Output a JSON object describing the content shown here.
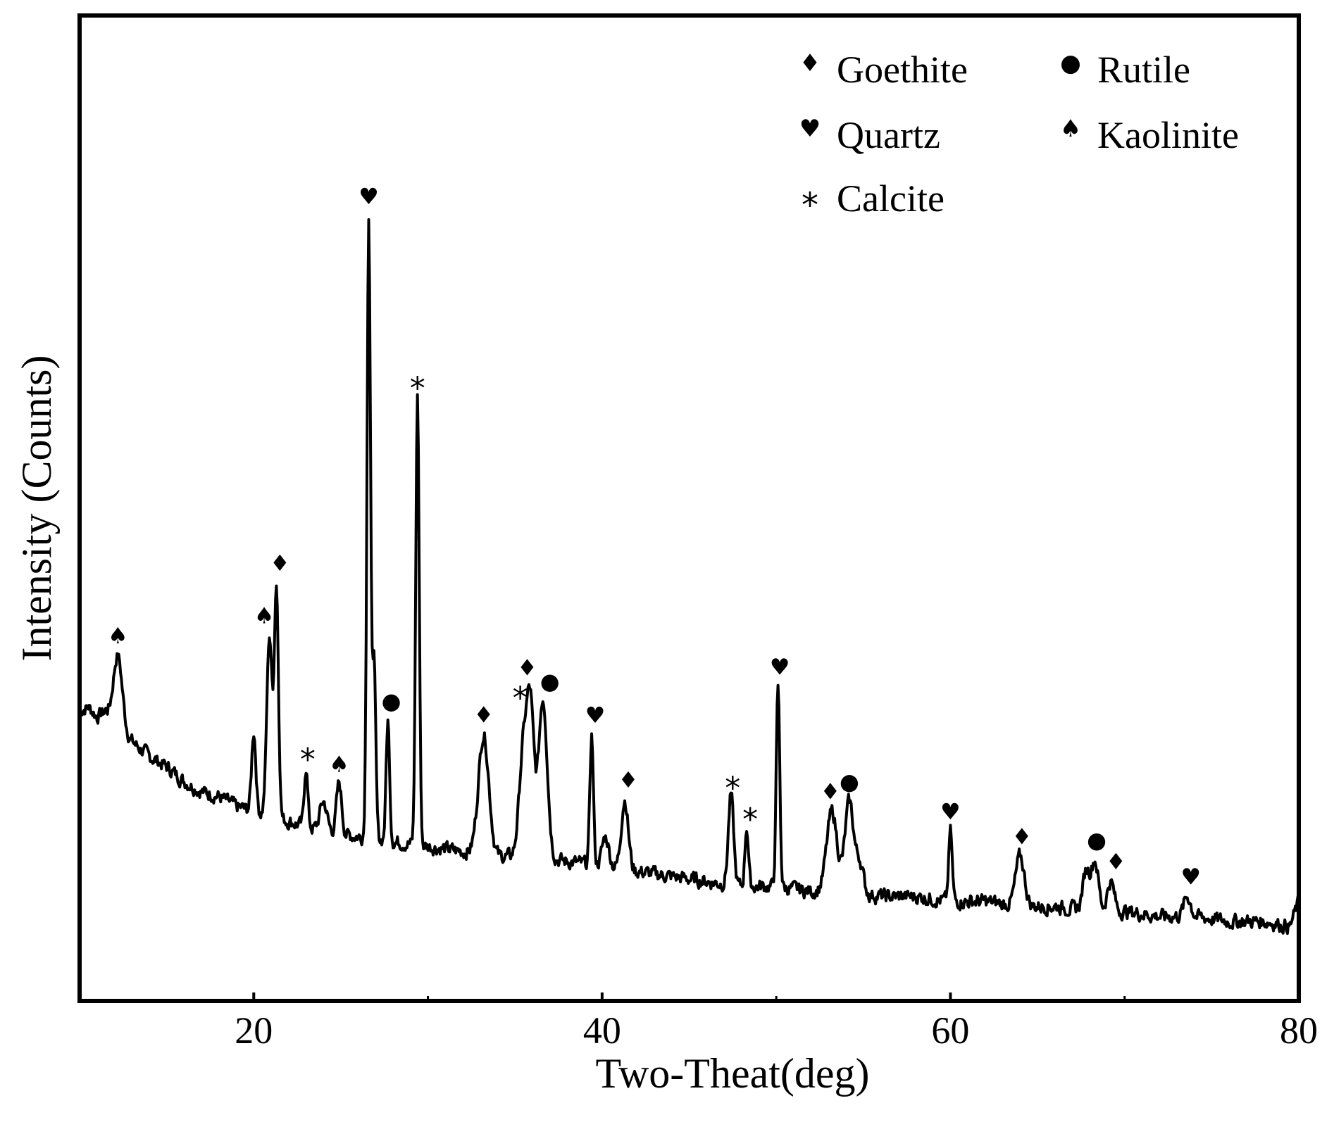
{
  "chart_data": {
    "type": "line",
    "title": "",
    "xlabel": "Two-Theat(deg)",
    "ylabel": "Intensity  (Counts)",
    "xlim": [
      10,
      80
    ],
    "ylim": [
      0,
      100
    ],
    "x_ticks": [
      {
        "value": 20,
        "label": "20"
      },
      {
        "value": 40,
        "label": "40"
      },
      {
        "value": 60,
        "label": "60"
      },
      {
        "value": 80,
        "label": "80"
      }
    ],
    "y_ticks_shown": false,
    "grid": false,
    "legend_position": "top-right",
    "legend": [
      {
        "phase": "goethite",
        "symbol": "♦",
        "label": "Goethite"
      },
      {
        "phase": "rutile",
        "symbol": "●",
        "label": "Rutile"
      },
      {
        "phase": "quartz",
        "symbol": "♥",
        "label": "Quartz"
      },
      {
        "phase": "kaolinite",
        "symbol": "♠",
        "label": "Kaolinite"
      },
      {
        "phase": "calcite",
        "symbol": "*",
        "label": "Calcite"
      }
    ],
    "series": [
      {
        "color": "#000000",
        "baseline": [
          [
            10,
            26
          ],
          [
            10.5,
            26.5
          ],
          [
            11,
            25.5
          ],
          [
            11.5,
            26
          ],
          [
            12,
            25
          ],
          [
            12.5,
            24
          ],
          [
            13,
            23
          ],
          [
            14,
            21.5
          ],
          [
            15,
            20.5
          ],
          [
            16,
            19
          ],
          [
            17,
            18
          ],
          [
            18,
            17.5
          ],
          [
            19,
            16.5
          ],
          [
            20,
            16
          ],
          [
            22,
            15
          ],
          [
            24,
            14
          ],
          [
            26,
            13.5
          ],
          [
            28,
            13
          ],
          [
            30,
            12.5
          ],
          [
            32,
            12
          ],
          [
            34,
            11.5
          ],
          [
            36,
            11.5
          ],
          [
            38,
            11
          ],
          [
            40,
            10.5
          ],
          [
            42,
            10
          ],
          [
            44,
            9.5
          ],
          [
            46,
            9
          ],
          [
            48,
            8.5
          ],
          [
            50,
            8.5
          ],
          [
            52,
            8
          ],
          [
            54,
            8
          ],
          [
            56,
            7.5
          ],
          [
            58,
            7.5
          ],
          [
            60,
            7
          ],
          [
            62,
            7
          ],
          [
            64,
            6.5
          ],
          [
            66,
            6.5
          ],
          [
            68,
            6
          ],
          [
            70,
            6
          ],
          [
            72,
            5.5
          ],
          [
            74,
            5.5
          ],
          [
            76,
            5
          ],
          [
            78,
            5
          ],
          [
            79.5,
            4.5
          ],
          [
            80,
            7
          ]
        ],
        "peaks": [
          {
            "x": 12.2,
            "height": 7,
            "width": 0.25
          },
          {
            "x": 20.0,
            "height": 8,
            "width": 0.12
          },
          {
            "x": 20.9,
            "height": 18,
            "width": 0.15
          },
          {
            "x": 21.3,
            "height": 23,
            "width": 0.12
          },
          {
            "x": 23.0,
            "height": 6,
            "width": 0.1
          },
          {
            "x": 24.0,
            "height": 3,
            "width": 0.2
          },
          {
            "x": 24.9,
            "height": 5,
            "width": 0.15
          },
          {
            "x": 26.6,
            "height": 62,
            "width": 0.1
          },
          {
            "x": 26.9,
            "height": 18,
            "width": 0.1
          },
          {
            "x": 27.7,
            "height": 12,
            "width": 0.1
          },
          {
            "x": 29.4,
            "height": 45,
            "width": 0.1
          },
          {
            "x": 33.2,
            "height": 12,
            "width": 0.3
          },
          {
            "x": 35.5,
            "height": 11,
            "width": 0.25
          },
          {
            "x": 35.9,
            "height": 13,
            "width": 0.2
          },
          {
            "x": 36.6,
            "height": 16,
            "width": 0.25
          },
          {
            "x": 39.4,
            "height": 13,
            "width": 0.1
          },
          {
            "x": 40.2,
            "height": 3,
            "width": 0.2
          },
          {
            "x": 41.3,
            "height": 7,
            "width": 0.2
          },
          {
            "x": 47.4,
            "height": 9,
            "width": 0.15
          },
          {
            "x": 48.3,
            "height": 6,
            "width": 0.1
          },
          {
            "x": 50.1,
            "height": 20,
            "width": 0.1
          },
          {
            "x": 53.2,
            "height": 8,
            "width": 0.3
          },
          {
            "x": 54.2,
            "height": 9,
            "width": 0.25
          },
          {
            "x": 54.8,
            "height": 3,
            "width": 0.2
          },
          {
            "x": 60.0,
            "height": 7,
            "width": 0.1
          },
          {
            "x": 64.0,
            "height": 5,
            "width": 0.25
          },
          {
            "x": 67.8,
            "height": 4,
            "width": 0.2
          },
          {
            "x": 68.3,
            "height": 5,
            "width": 0.2
          },
          {
            "x": 69.2,
            "height": 3,
            "width": 0.2
          },
          {
            "x": 73.6,
            "height": 2,
            "width": 0.2
          }
        ]
      }
    ],
    "annotations": [
      {
        "x": 12.2,
        "phase": "kaolinite",
        "symbol": "♠"
      },
      {
        "x": 20.6,
        "phase": "kaolinite",
        "symbol": "♠"
      },
      {
        "x": 21.5,
        "phase": "goethite",
        "symbol": "♦"
      },
      {
        "x": 23.1,
        "phase": "calcite",
        "symbol": "*"
      },
      {
        "x": 24.9,
        "phase": "kaolinite",
        "symbol": "♠"
      },
      {
        "x": 26.6,
        "phase": "quartz",
        "symbol": "♥"
      },
      {
        "x": 27.9,
        "phase": "rutile",
        "symbol": "●"
      },
      {
        "x": 29.4,
        "phase": "calcite",
        "symbol": "*"
      },
      {
        "x": 33.2,
        "phase": "goethite",
        "symbol": "♦"
      },
      {
        "x": 35.3,
        "phase": "calcite",
        "symbol": "*"
      },
      {
        "x": 35.7,
        "phase": "goethite",
        "symbol": "♦"
      },
      {
        "x": 37.0,
        "phase": "rutile",
        "symbol": "●"
      },
      {
        "x": 39.6,
        "phase": "quartz",
        "symbol": "♥"
      },
      {
        "x": 41.5,
        "phase": "goethite",
        "symbol": "♦"
      },
      {
        "x": 47.5,
        "phase": "calcite",
        "symbol": "*"
      },
      {
        "x": 48.5,
        "phase": "calcite",
        "symbol": "*"
      },
      {
        "x": 50.2,
        "phase": "quartz",
        "symbol": "♥"
      },
      {
        "x": 53.1,
        "phase": "goethite",
        "symbol": "♦"
      },
      {
        "x": 54.2,
        "phase": "rutile",
        "symbol": "●"
      },
      {
        "x": 60.0,
        "phase": "quartz",
        "symbol": "♥"
      },
      {
        "x": 64.1,
        "phase": "goethite",
        "symbol": "♦"
      },
      {
        "x": 68.4,
        "phase": "rutile",
        "symbol": "●"
      },
      {
        "x": 69.5,
        "phase": "goethite",
        "symbol": "♦"
      },
      {
        "x": 73.8,
        "phase": "quartz",
        "symbol": "♥"
      }
    ]
  }
}
